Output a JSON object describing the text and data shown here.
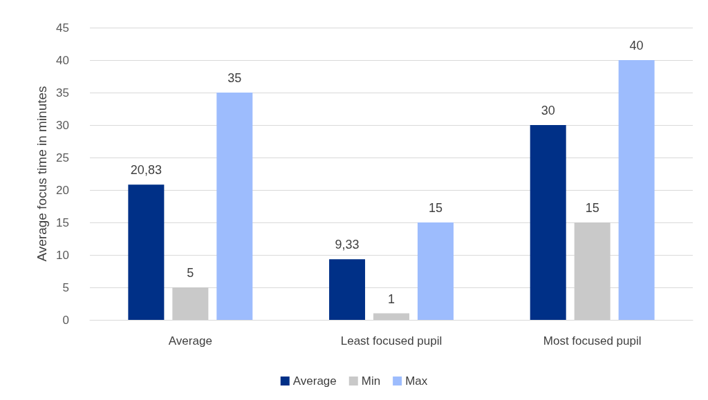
{
  "chart_data": {
    "type": "bar",
    "ylabel": "Average focus time in minutes",
    "categories": [
      "Average",
      "Least focused pupil",
      "Most focused pupil"
    ],
    "series": [
      {
        "name": "Average",
        "color": "#003087",
        "values": [
          20.83,
          9.33,
          30
        ],
        "value_labels": [
          "20,83",
          "9,33",
          "30"
        ]
      },
      {
        "name": "Min",
        "color": "#c9c9c9",
        "values": [
          5,
          1,
          15
        ],
        "value_labels": [
          "5",
          "1",
          "15"
        ]
      },
      {
        "name": "Max",
        "color": "#9dbcfd",
        "values": [
          35,
          15,
          40
        ],
        "value_labels": [
          "35",
          "15",
          "40"
        ]
      }
    ],
    "ylim": [
      0,
      45
    ],
    "yticks": [
      0,
      5,
      10,
      15,
      20,
      25,
      30,
      35,
      40,
      45
    ],
    "grid": "y",
    "legend": "bottom"
  }
}
